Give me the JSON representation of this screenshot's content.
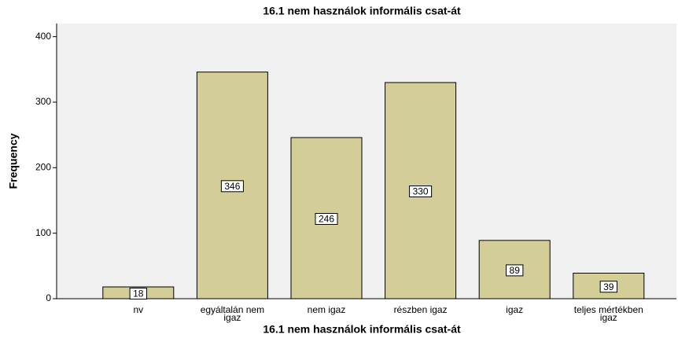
{
  "chart_data": {
    "type": "bar",
    "title": "16.1 nem használok informális csat-át",
    "x_label": "16.1 nem használok informális csat-át",
    "y_label": "Frequency",
    "categories": [
      "nv",
      "egyáltalán nem igaz",
      "nem igaz",
      "részben igaz",
      "igaz",
      "teljes mértékben igaz"
    ],
    "values": [
      18,
      346,
      246,
      330,
      89,
      39
    ],
    "color": "#d3ce97",
    "ylim": [
      0,
      420
    ],
    "yticks": [
      0,
      100,
      200,
      300,
      400
    ],
    "grid": false
  }
}
